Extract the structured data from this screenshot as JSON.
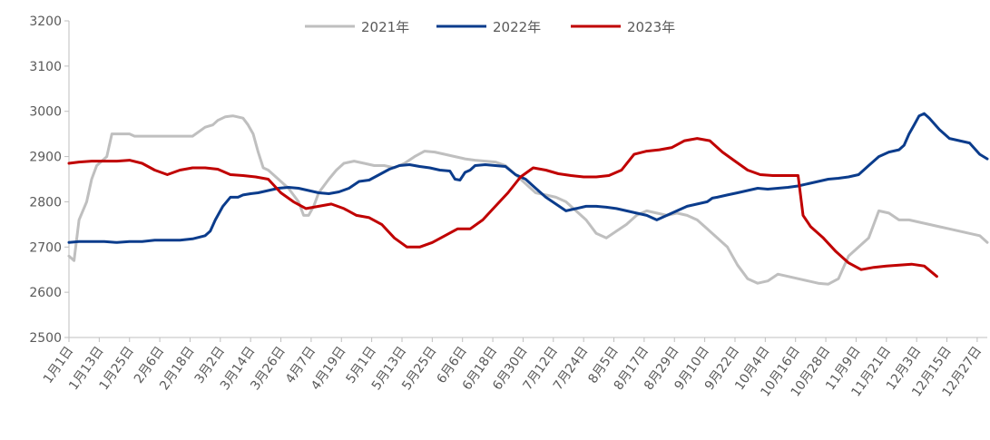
{
  "chart_data": {
    "type": "line",
    "title": "",
    "xlabel": "",
    "ylabel": "",
    "ylim": [
      2500,
      3200
    ],
    "yticks": [
      2500,
      2600,
      2700,
      2800,
      2900,
      3000,
      3100,
      3200
    ],
    "grid": false,
    "legend_position": "top-center",
    "x_labels": [
      "1月1日",
      "1月13日",
      "1月25日",
      "2月6日",
      "2月18日",
      "3月2日",
      "3月14日",
      "3月26日",
      "4月7日",
      "4月19日",
      "5月1日",
      "5月13日",
      "5月25日",
      "6月6日",
      "6月18日",
      "6月30日",
      "7月12日",
      "7月24日",
      "8月5日",
      "8月17日",
      "8月29日",
      "9月10日",
      "9月22日",
      "10月4日",
      "10月16日",
      "10月28日",
      "11月9日",
      "11月21日",
      "12月3日",
      "12月15日",
      "12月27日"
    ],
    "x_is_day_of_year": true,
    "x_range": [
      1,
      365
    ],
    "series": [
      {
        "name": "2021年",
        "color": "#bfbfbf",
        "x": [
          1,
          3,
          5,
          8,
          10,
          12,
          14,
          16,
          18,
          20,
          25,
          27,
          30,
          34,
          37,
          40,
          45,
          50,
          55,
          58,
          60,
          63,
          66,
          70,
          72,
          74,
          76,
          78,
          80,
          82,
          84,
          86,
          88,
          90,
          92,
          94,
          96,
          98,
          100,
          104,
          107,
          110,
          114,
          118,
          122,
          126,
          130,
          134,
          138,
          142,
          146,
          150,
          154,
          158,
          162,
          166,
          170,
          174,
          178,
          182,
          186,
          190,
          194,
          198,
          202,
          206,
          210,
          214,
          218,
          222,
          226,
          230,
          234,
          238,
          242,
          246,
          250,
          254,
          258,
          262,
          266,
          270,
          274,
          278,
          282,
          286,
          290,
          294,
          298,
          302,
          306,
          310,
          314,
          318,
          322,
          326,
          330,
          334,
          338,
          342,
          346,
          350,
          354,
          358,
          362,
          365
        ],
        "values": [
          2680,
          2670,
          2760,
          2800,
          2850,
          2880,
          2890,
          2900,
          2950,
          2950,
          2950,
          2945,
          2945,
          2945,
          2945,
          2945,
          2945,
          2945,
          2965,
          2970,
          2980,
          2988,
          2990,
          2985,
          2970,
          2950,
          2910,
          2875,
          2870,
          2860,
          2850,
          2840,
          2830,
          2815,
          2800,
          2770,
          2770,
          2790,
          2820,
          2850,
          2870,
          2885,
          2890,
          2885,
          2880,
          2880,
          2875,
          2885,
          2900,
          2912,
          2910,
          2905,
          2900,
          2895,
          2892,
          2890,
          2888,
          2880,
          2860,
          2840,
          2820,
          2815,
          2810,
          2800,
          2780,
          2760,
          2730,
          2720,
          2735,
          2750,
          2770,
          2780,
          2775,
          2770,
          2775,
          2770,
          2760,
          2740,
          2720,
          2700,
          2660,
          2630,
          2620,
          2625,
          2640,
          2635,
          2630,
          2625,
          2620,
          2618,
          2630,
          2680,
          2700,
          2720,
          2780,
          2775,
          2760,
          2760,
          2755,
          2750,
          2745,
          2740,
          2735,
          2730,
          2725,
          2710
        ]
      },
      {
        "name": "2022年",
        "color": "#0b3c8c",
        "x": [
          1,
          5,
          10,
          15,
          20,
          25,
          30,
          35,
          40,
          45,
          50,
          55,
          57,
          59,
          62,
          65,
          68,
          70,
          73,
          76,
          80,
          84,
          88,
          92,
          96,
          100,
          104,
          108,
          112,
          116,
          120,
          124,
          128,
          132,
          136,
          140,
          144,
          148,
          152,
          154,
          156,
          158,
          160,
          162,
          166,
          170,
          174,
          178,
          182,
          186,
          190,
          194,
          198,
          202,
          206,
          210,
          214,
          218,
          222,
          226,
          230,
          234,
          238,
          242,
          246,
          250,
          254,
          256,
          258,
          262,
          266,
          270,
          274,
          278,
          282,
          286,
          290,
          294,
          298,
          302,
          306,
          310,
          314,
          318,
          322,
          326,
          330,
          332,
          334,
          336,
          338,
          340,
          342,
          346,
          350,
          354,
          358,
          362,
          365
        ],
        "values": [
          2710,
          2712,
          2712,
          2712,
          2710,
          2712,
          2712,
          2715,
          2715,
          2715,
          2718,
          2725,
          2735,
          2760,
          2790,
          2810,
          2810,
          2815,
          2818,
          2820,
          2825,
          2830,
          2832,
          2830,
          2825,
          2820,
          2818,
          2822,
          2830,
          2845,
          2848,
          2860,
          2872,
          2880,
          2882,
          2878,
          2875,
          2870,
          2868,
          2850,
          2848,
          2865,
          2870,
          2880,
          2882,
          2880,
          2878,
          2860,
          2850,
          2830,
          2810,
          2795,
          2780,
          2785,
          2790,
          2790,
          2788,
          2785,
          2780,
          2775,
          2770,
          2760,
          2770,
          2780,
          2790,
          2795,
          2800,
          2808,
          2810,
          2815,
          2820,
          2825,
          2830,
          2828,
          2830,
          2832,
          2835,
          2840,
          2845,
          2850,
          2852,
          2855,
          2860,
          2880,
          2900,
          2910,
          2915,
          2925,
          2950,
          2970,
          2990,
          2995,
          2985,
          2960,
          2940,
          2935,
          2930,
          2905,
          2895
        ]
      },
      {
        "name": "2023年",
        "color": "#c00000",
        "x": [
          1,
          5,
          10,
          15,
          20,
          25,
          30,
          35,
          40,
          45,
          50,
          55,
          60,
          65,
          70,
          75,
          80,
          85,
          90,
          95,
          100,
          105,
          110,
          115,
          120,
          125,
          130,
          135,
          140,
          145,
          150,
          155,
          160,
          165,
          170,
          175,
          180,
          185,
          190,
          195,
          200,
          205,
          210,
          215,
          220,
          225,
          230,
          235,
          240,
          245,
          250,
          255,
          260,
          265,
          270,
          275,
          280,
          285,
          290,
          292,
          295,
          300,
          305,
          310,
          315,
          320,
          325,
          330,
          335,
          340,
          345
        ],
        "values": [
          2885,
          2888,
          2890,
          2890,
          2890,
          2892,
          2885,
          2870,
          2860,
          2870,
          2875,
          2875,
          2872,
          2860,
          2858,
          2855,
          2850,
          2820,
          2800,
          2785,
          2790,
          2795,
          2785,
          2770,
          2765,
          2750,
          2720,
          2700,
          2700,
          2710,
          2725,
          2740,
          2740,
          2760,
          2790,
          2820,
          2855,
          2875,
          2870,
          2862,
          2858,
          2855,
          2855,
          2858,
          2870,
          2905,
          2912,
          2915,
          2920,
          2935,
          2940,
          2935,
          2910,
          2890,
          2870,
          2860,
          2858,
          2858,
          2858,
          2770,
          2745,
          2720,
          2690,
          2665,
          2650,
          2655,
          2658,
          2660,
          2662,
          2658,
          2635
        ]
      }
    ]
  }
}
